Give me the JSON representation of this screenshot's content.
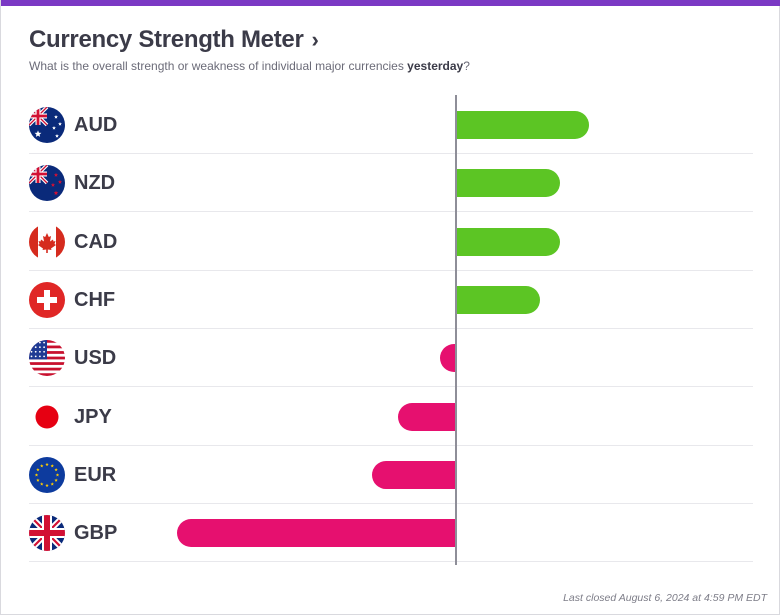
{
  "header": {
    "title": "Currency Strength Meter",
    "subtitle_prefix": "What is the overall strength or weakness of individual major currencies ",
    "subtitle_period": "yesterday",
    "subtitle_suffix": "?"
  },
  "footer": {
    "last_closed": "Last closed August 6, 2024 at 4:59 PM EDT"
  },
  "colors": {
    "accent": "#7b39c4",
    "positive": "#5cc524",
    "negative": "#e6106f"
  },
  "chart_data": {
    "type": "bar",
    "orientation": "horizontal-diverging",
    "categories": [
      "AUD",
      "NZD",
      "CAD",
      "CHF",
      "USD",
      "JPY",
      "EUR",
      "GBP"
    ],
    "values": [
      1.33,
      1.04,
      1.04,
      0.84,
      -0.15,
      -0.57,
      -0.84,
      -2.8
    ],
    "flags": [
      "australia-flag-icon",
      "new-zealand-flag-icon",
      "canada-flag-icon",
      "switzerland-flag-icon",
      "usa-flag-icon",
      "japan-flag-icon",
      "eu-flag-icon",
      "uk-flag-icon"
    ],
    "xlim": [
      -3,
      3
    ],
    "grid": false,
    "title": "",
    "xlabel": "",
    "ylabel": ""
  }
}
